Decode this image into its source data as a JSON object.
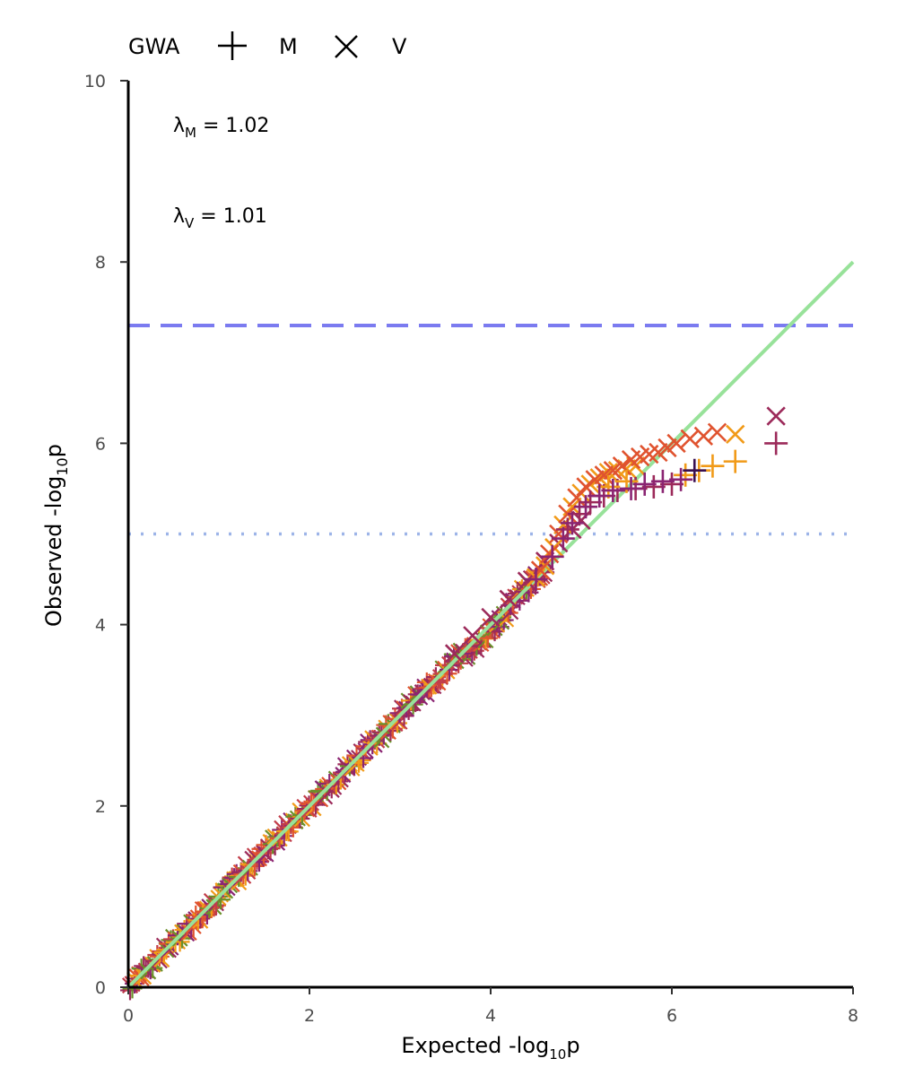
{
  "chart_data": {
    "type": "scatter",
    "title": "",
    "xlabel": {
      "main": "Expected -log",
      "sub": "10",
      "tail": "p"
    },
    "ylabel": {
      "main": "Observed -log",
      "sub": "10",
      "tail": "p"
    },
    "xlim": [
      0,
      8
    ],
    "ylim": [
      0,
      10
    ],
    "xticks": [
      "0",
      "2",
      "4",
      "6",
      "8"
    ],
    "yticks": [
      "0",
      "2",
      "4",
      "6",
      "8",
      "10"
    ],
    "grid": false,
    "legend": {
      "title": "GWA",
      "placement": "top-left",
      "items": [
        {
          "label": "M",
          "symbol": "plus"
        },
        {
          "label": "V",
          "symbol": "cross"
        }
      ]
    },
    "annotations": [
      {
        "lambda": "λ",
        "sub": "M",
        "text": " = 1.02"
      },
      {
        "lambda": "λ",
        "sub": "V",
        "text": " = 1.01"
      }
    ],
    "reference_lines": [
      {
        "type": "hline",
        "y": 7.3,
        "style": "dashed",
        "color": "#7b7bf0"
      },
      {
        "type": "hline",
        "y": 5.0,
        "style": "dotted",
        "color": "#9db4e8"
      },
      {
        "type": "diagonal",
        "from": [
          0,
          0
        ],
        "to": [
          8,
          8
        ],
        "color": "#98e29a"
      }
    ],
    "series": [
      {
        "symbol": "cross",
        "color": "#9c2a5a",
        "points": [
          [
            7.15,
            6.3
          ],
          [
            5.0,
            5.15
          ],
          [
            4.9,
            5.05
          ],
          [
            4.75,
            4.9
          ],
          [
            4.6,
            4.7
          ],
          [
            4.4,
            4.48
          ],
          [
            4.2,
            4.28
          ],
          [
            4.0,
            4.08
          ],
          [
            3.8,
            3.88
          ],
          [
            3.6,
            3.68
          ]
        ]
      },
      {
        "symbol": "cross",
        "color": "#f19a18",
        "points": [
          [
            6.7,
            6.1
          ],
          [
            5.6,
            5.75
          ],
          [
            5.5,
            5.72
          ],
          [
            5.4,
            5.7
          ],
          [
            5.3,
            5.68
          ],
          [
            5.2,
            5.62
          ],
          [
            5.1,
            5.55
          ],
          [
            5.0,
            5.45
          ],
          [
            4.9,
            5.3
          ],
          [
            4.8,
            5.1
          ],
          [
            4.7,
            4.85
          ],
          [
            4.6,
            4.65
          ],
          [
            4.5,
            4.52
          ]
        ]
      },
      {
        "symbol": "cross",
        "color": "#e0532f",
        "points": [
          [
            6.5,
            6.12
          ],
          [
            6.35,
            6.08
          ],
          [
            6.2,
            6.05
          ],
          [
            6.05,
            6.0
          ],
          [
            5.95,
            5.95
          ],
          [
            5.85,
            5.9
          ],
          [
            5.75,
            5.88
          ],
          [
            5.65,
            5.85
          ],
          [
            5.55,
            5.82
          ],
          [
            5.45,
            5.75
          ],
          [
            5.35,
            5.7
          ],
          [
            5.25,
            5.65
          ],
          [
            5.15,
            5.6
          ],
          [
            5.05,
            5.52
          ],
          [
            4.95,
            5.4
          ],
          [
            4.85,
            5.22
          ],
          [
            4.75,
            5.0
          ],
          [
            4.65,
            4.78
          ],
          [
            4.55,
            4.6
          ]
        ]
      },
      {
        "symbol": "plus",
        "color": "#9c2a5a",
        "points": [
          [
            7.15,
            6.0
          ],
          [
            6.0,
            5.55
          ],
          [
            5.8,
            5.52
          ],
          [
            5.6,
            5.5
          ],
          [
            5.4,
            5.48
          ],
          [
            5.25,
            5.42
          ],
          [
            5.1,
            5.35
          ],
          [
            4.98,
            5.22
          ],
          [
            4.85,
            5.05
          ]
        ]
      },
      {
        "symbol": "plus",
        "color": "#f19a18",
        "points": [
          [
            6.7,
            5.8
          ],
          [
            6.45,
            5.75
          ],
          [
            6.3,
            5.7
          ],
          [
            6.15,
            5.65
          ],
          [
            5.5,
            5.58
          ],
          [
            5.3,
            5.52
          ]
        ]
      },
      {
        "symbol": "plus",
        "color": "#8a2472",
        "points": [
          [
            6.1,
            5.6
          ],
          [
            5.9,
            5.58
          ],
          [
            5.7,
            5.55
          ],
          [
            5.55,
            5.5
          ],
          [
            5.35,
            5.48
          ],
          [
            5.2,
            5.42
          ],
          [
            5.05,
            5.3
          ],
          [
            4.9,
            5.12
          ],
          [
            4.8,
            4.95
          ],
          [
            4.68,
            4.75
          ],
          [
            4.5,
            4.5
          ]
        ]
      },
      {
        "symbol": "plus",
        "color": "#3a1050",
        "points": [
          [
            6.25,
            5.7
          ]
        ]
      }
    ]
  }
}
